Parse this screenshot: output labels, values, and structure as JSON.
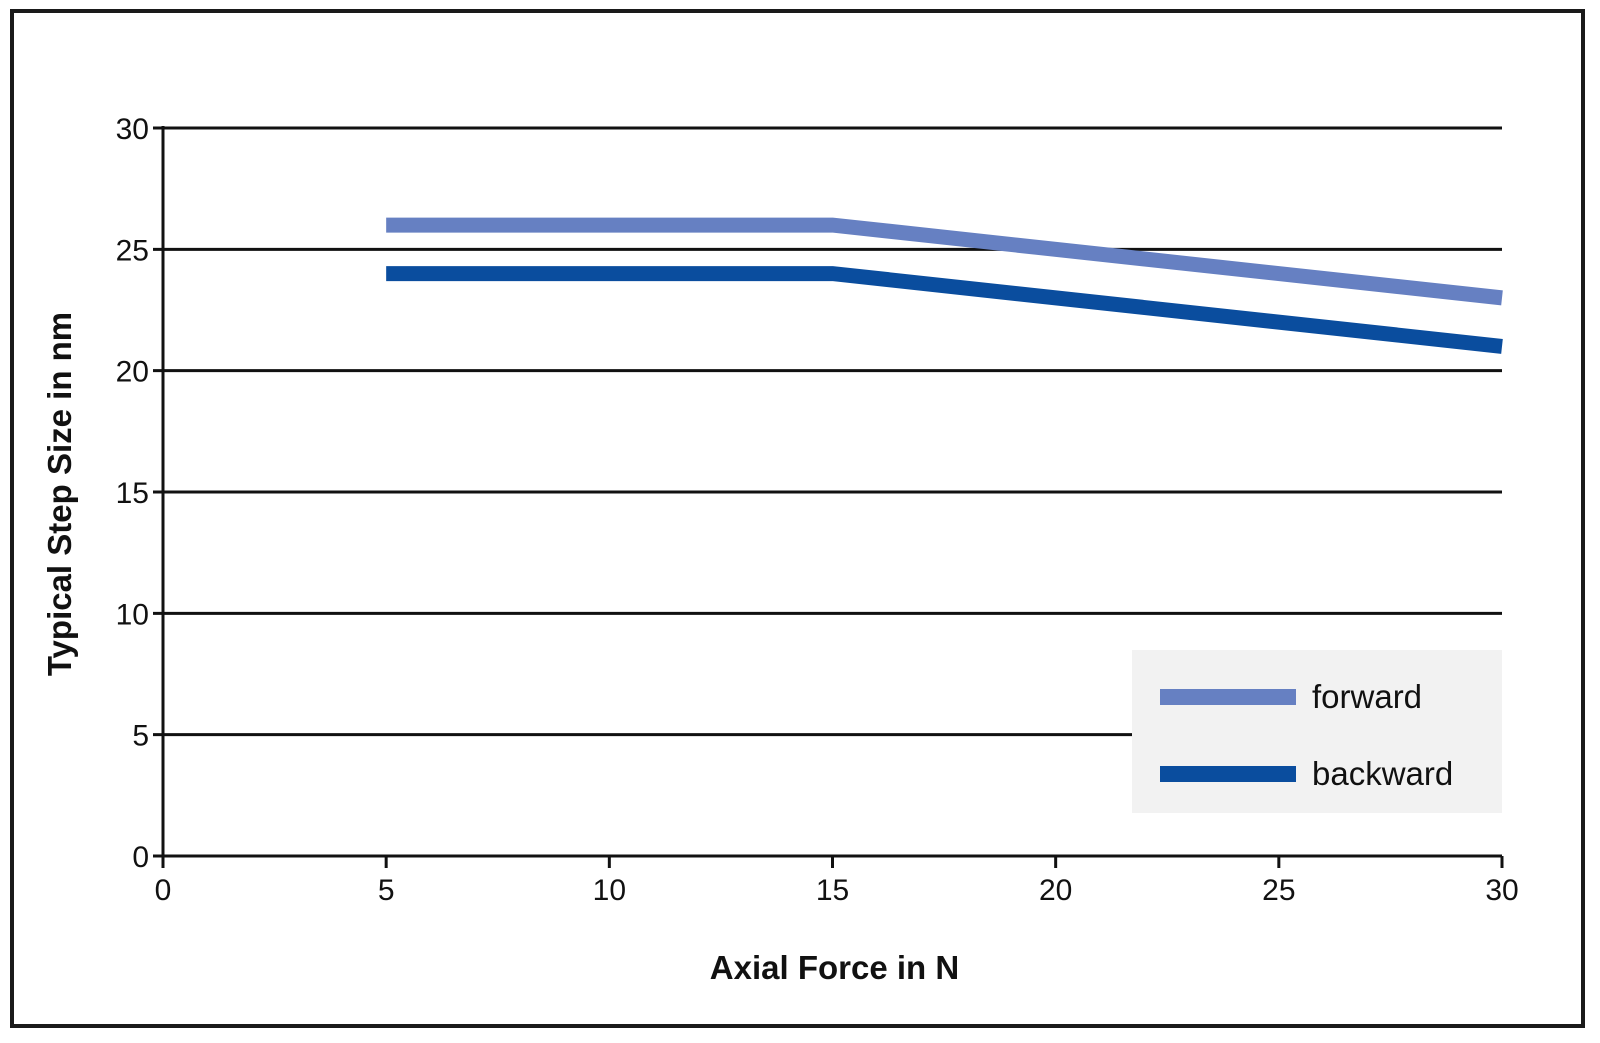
{
  "chart_data": {
    "type": "line",
    "title": "",
    "xlabel": "Axial Force in N",
    "ylabel": "Typical Step Size in nm",
    "xlim": [
      0,
      30
    ],
    "ylim": [
      0,
      30
    ],
    "x_ticks": [
      "0",
      "5",
      "10",
      "15",
      "20",
      "25",
      "30"
    ],
    "y_ticks": [
      "0",
      "5",
      "10",
      "15",
      "20",
      "25",
      "30"
    ],
    "grid": "horizontal",
    "legend_position": "bottom-right",
    "series": [
      {
        "name": "forward",
        "color": "#6680c2",
        "x": [
          5,
          15,
          30
        ],
        "y": [
          26,
          26,
          23
        ]
      },
      {
        "name": "backward",
        "color": "#0a4d9e",
        "x": [
          5,
          15,
          30
        ],
        "y": [
          24,
          24,
          21
        ]
      }
    ]
  }
}
